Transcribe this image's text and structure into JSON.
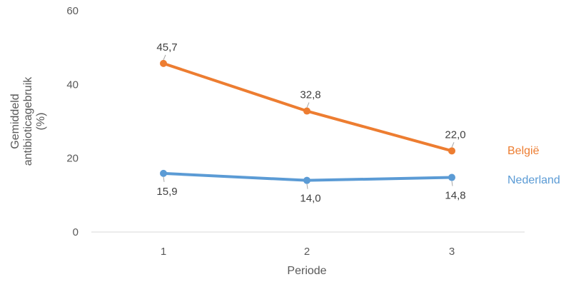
{
  "chart_data": {
    "type": "line",
    "title": "",
    "xlabel": "Periode",
    "ylabel_lines": [
      "Gemiddeld",
      "antibioticagebruik",
      "(%)"
    ],
    "x": [
      "1",
      "2",
      "3"
    ],
    "ylim": [
      0,
      60
    ],
    "yticks": [
      "0",
      "20",
      "40",
      "60"
    ],
    "grid": false,
    "legend_position": "right",
    "series": [
      {
        "name": "België",
        "color": "#ED7D31",
        "values": [
          45.7,
          32.8,
          22.0
        ],
        "labels": [
          "45,7",
          "32,8",
          "22,0"
        ],
        "label_placement": "above"
      },
      {
        "name": "Nederland",
        "color": "#5B9BD5",
        "values": [
          15.9,
          14.0,
          14.8
        ],
        "labels": [
          "15,9",
          "14,0",
          "14,8"
        ],
        "label_placement": "below"
      }
    ]
  }
}
